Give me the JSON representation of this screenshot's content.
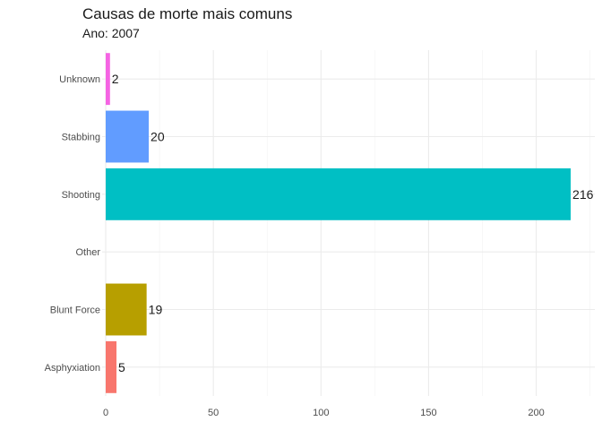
{
  "chart_data": {
    "type": "bar",
    "orientation": "horizontal",
    "title": "Causas de morte mais comuns",
    "subtitle": "Ano: 2007",
    "xlabel": "",
    "ylabel": "",
    "categories": [
      "Asphyxiation",
      "Blunt Force",
      "Other",
      "Shooting",
      "Stabbing",
      "Unknown"
    ],
    "values": [
      5,
      19,
      0,
      216,
      20,
      2
    ],
    "data_labels": [
      "5",
      "19",
      "",
      "216",
      "20",
      "2"
    ],
    "colors": [
      "#F8766D",
      "#B79F00",
      "#00BA38",
      "#00BFC4",
      "#619CFF",
      "#F564E3"
    ],
    "xlim": [
      0,
      226
    ],
    "x_ticks": [
      0,
      50,
      100,
      150,
      200
    ],
    "grid": true,
    "legend": "none"
  }
}
